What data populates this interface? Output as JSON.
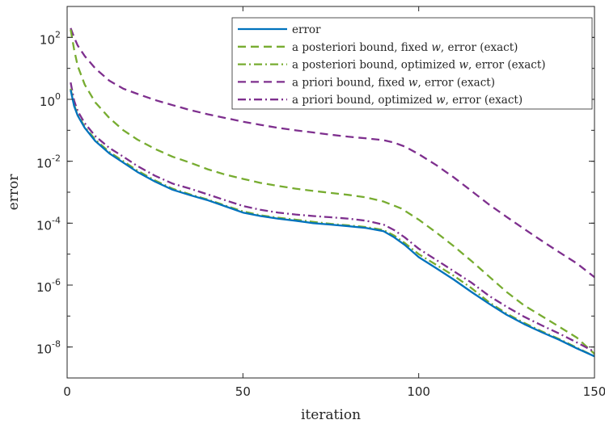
{
  "chart_data": {
    "type": "line",
    "title": "",
    "xlabel": "iteration",
    "ylabel": "error",
    "xlim": [
      0,
      150
    ],
    "ylim": [
      1e-09,
      1000.0
    ],
    "y_scale": "log",
    "grid": false,
    "legend_position": "top-right",
    "x_ticks": [
      "0",
      "50",
      "100",
      "150"
    ],
    "y_ticks": [
      {
        "base": "10",
        "exp": "2"
      },
      {
        "base": "10",
        "exp": "0"
      },
      {
        "base": "10",
        "exp": "-2"
      },
      {
        "base": "10",
        "exp": "-4"
      },
      {
        "base": "10",
        "exp": "-6"
      },
      {
        "base": "10",
        "exp": "-8"
      }
    ],
    "series": [
      {
        "name": "error",
        "color": "#0072BD",
        "dash": "solid",
        "points": [
          [
            1,
            2.0
          ],
          [
            2,
            0.6
          ],
          [
            3,
            0.3
          ],
          [
            5,
            0.12
          ],
          [
            8,
            0.045
          ],
          [
            12,
            0.018
          ],
          [
            16,
            0.009
          ],
          [
            20,
            0.0045
          ],
          [
            25,
            0.0022
          ],
          [
            30,
            0.0012
          ],
          [
            35,
            0.0008
          ],
          [
            40,
            0.00055
          ],
          [
            45,
            0.00035
          ],
          [
            50,
            0.00022
          ],
          [
            55,
            0.00017
          ],
          [
            60,
            0.00014
          ],
          [
            65,
            0.00012
          ],
          [
            70,
            0.0001
          ],
          [
            75,
            9e-05
          ],
          [
            80,
            8e-05
          ],
          [
            85,
            7e-05
          ],
          [
            90,
            5.5e-05
          ],
          [
            93,
            3.5e-05
          ],
          [
            96,
            2e-05
          ],
          [
            100,
            8e-06
          ],
          [
            105,
            3.5e-06
          ],
          [
            110,
            1.5e-06
          ],
          [
            115,
            6e-07
          ],
          [
            120,
            2.5e-07
          ],
          [
            125,
            1.1e-07
          ],
          [
            130,
            5.5e-08
          ],
          [
            135,
            3e-08
          ],
          [
            140,
            1.7e-08
          ],
          [
            145,
            9e-09
          ],
          [
            150,
            5e-09
          ]
        ]
      },
      {
        "name": "a posteriori bound, fixed w, error (exact)",
        "color": "#77AC30",
        "dash": "dashed",
        "points": [
          [
            1,
            180
          ],
          [
            2,
            40
          ],
          [
            3,
            12
          ],
          [
            5,
            3
          ],
          [
            8,
            0.8
          ],
          [
            12,
            0.25
          ],
          [
            16,
            0.1
          ],
          [
            20,
            0.05
          ],
          [
            25,
            0.025
          ],
          [
            30,
            0.014
          ],
          [
            35,
            0.009
          ],
          [
            40,
            0.0055
          ],
          [
            45,
            0.0037
          ],
          [
            50,
            0.0027
          ],
          [
            55,
            0.002
          ],
          [
            60,
            0.0016
          ],
          [
            65,
            0.0013
          ],
          [
            70,
            0.0011
          ],
          [
            75,
            0.00095
          ],
          [
            80,
            0.00082
          ],
          [
            85,
            0.00068
          ],
          [
            90,
            0.0005
          ],
          [
            95,
            0.0003
          ],
          [
            100,
            0.00013
          ],
          [
            105,
            5e-05
          ],
          [
            110,
            1.8e-05
          ],
          [
            115,
            6e-06
          ],
          [
            120,
            1.9e-06
          ],
          [
            125,
            6e-07
          ],
          [
            130,
            2.2e-07
          ],
          [
            135,
            1e-07
          ],
          [
            140,
            4.5e-08
          ],
          [
            145,
            2e-08
          ],
          [
            150,
            6e-09
          ]
        ]
      },
      {
        "name": "a posteriori bound, optimized w, error (exact)",
        "color": "#77AC30",
        "dash": "dashdot",
        "points": [
          [
            1,
            2.2
          ],
          [
            2,
            0.65
          ],
          [
            3,
            0.32
          ],
          [
            5,
            0.13
          ],
          [
            8,
            0.05
          ],
          [
            12,
            0.02
          ],
          [
            16,
            0.01
          ],
          [
            20,
            0.005
          ],
          [
            25,
            0.0024
          ],
          [
            30,
            0.0013
          ],
          [
            35,
            0.00085
          ],
          [
            40,
            0.00058
          ],
          [
            45,
            0.00037
          ],
          [
            50,
            0.00024
          ],
          [
            55,
            0.00018
          ],
          [
            60,
            0.00015
          ],
          [
            65,
            0.00013
          ],
          [
            70,
            0.00011
          ],
          [
            75,
            9.5e-05
          ],
          [
            80,
            8.5e-05
          ],
          [
            85,
            7.5e-05
          ],
          [
            90,
            6e-05
          ],
          [
            93,
            4e-05
          ],
          [
            96,
            2.3e-05
          ],
          [
            100,
            1e-05
          ],
          [
            105,
            4.5e-06
          ],
          [
            110,
            2e-06
          ],
          [
            115,
            8e-07
          ],
          [
            120,
            2.8e-07
          ],
          [
            125,
            1.2e-07
          ],
          [
            130,
            6e-08
          ],
          [
            135,
            3.2e-08
          ],
          [
            140,
            1.8e-08
          ],
          [
            145,
            9.5e-09
          ],
          [
            150,
            5e-09
          ]
        ]
      },
      {
        "name": "a priori bound, fixed w, error (exact)",
        "color": "#7E2F8E",
        "dash": "dashed",
        "points": [
          [
            1,
            200
          ],
          [
            2,
            100
          ],
          [
            3,
            55
          ],
          [
            5,
            25
          ],
          [
            8,
            10
          ],
          [
            12,
            4
          ],
          [
            16,
            2.2
          ],
          [
            20,
            1.5
          ],
          [
            25,
            0.95
          ],
          [
            30,
            0.65
          ],
          [
            35,
            0.45
          ],
          [
            40,
            0.33
          ],
          [
            45,
            0.25
          ],
          [
            50,
            0.19
          ],
          [
            55,
            0.15
          ],
          [
            60,
            0.12
          ],
          [
            65,
            0.1
          ],
          [
            70,
            0.085
          ],
          [
            75,
            0.072
          ],
          [
            80,
            0.062
          ],
          [
            85,
            0.055
          ],
          [
            90,
            0.048
          ],
          [
            93,
            0.04
          ],
          [
            96,
            0.03
          ],
          [
            100,
            0.017
          ],
          [
            105,
            0.0075
          ],
          [
            110,
            0.003
          ],
          [
            115,
            0.0011
          ],
          [
            120,
            0.0004
          ],
          [
            125,
            0.00016
          ],
          [
            130,
            6.5e-05
          ],
          [
            135,
            2.7e-05
          ],
          [
            140,
            1.15e-05
          ],
          [
            145,
            5e-06
          ],
          [
            150,
            1.8e-06
          ]
        ]
      },
      {
        "name": "a priori bound, optimized w, error (exact)",
        "color": "#7E2F8E",
        "dash": "dashdot",
        "points": [
          [
            1,
            3.5
          ],
          [
            2,
            0.9
          ],
          [
            3,
            0.42
          ],
          [
            5,
            0.17
          ],
          [
            8,
            0.065
          ],
          [
            12,
            0.027
          ],
          [
            16,
            0.014
          ],
          [
            20,
            0.007
          ],
          [
            25,
            0.0034
          ],
          [
            30,
            0.0019
          ],
          [
            35,
            0.0013
          ],
          [
            40,
            0.00085
          ],
          [
            45,
            0.00055
          ],
          [
            50,
            0.00036
          ],
          [
            55,
            0.00027
          ],
          [
            60,
            0.00022
          ],
          [
            65,
            0.00019
          ],
          [
            70,
            0.00017
          ],
          [
            75,
            0.000155
          ],
          [
            80,
            0.00014
          ],
          [
            85,
            0.00012
          ],
          [
            90,
            9e-05
          ],
          [
            93,
            6e-05
          ],
          [
            96,
            3.5e-05
          ],
          [
            100,
            1.5e-05
          ],
          [
            105,
            6.5e-06
          ],
          [
            110,
            2.8e-06
          ],
          [
            115,
            1.2e-06
          ],
          [
            120,
            4.5e-07
          ],
          [
            125,
            2e-07
          ],
          [
            130,
            9.5e-08
          ],
          [
            135,
            5e-08
          ],
          [
            140,
            2.7e-08
          ],
          [
            145,
            1.4e-08
          ],
          [
            150,
            7e-09
          ]
        ]
      }
    ],
    "legend": [
      {
        "pre": "error",
        "var": "",
        "post": ""
      },
      {
        "pre": "a posteriori bound, fixed ",
        "var": "w",
        "post": ", error (exact)"
      },
      {
        "pre": "a posteriori bound, optimized ",
        "var": "w",
        "post": ", error (exact)"
      },
      {
        "pre": "a priori bound, fixed ",
        "var": "w",
        "post": ", error (exact)"
      },
      {
        "pre": "a priori bound, optimized ",
        "var": "w",
        "post": ", error (exact)"
      }
    ]
  }
}
